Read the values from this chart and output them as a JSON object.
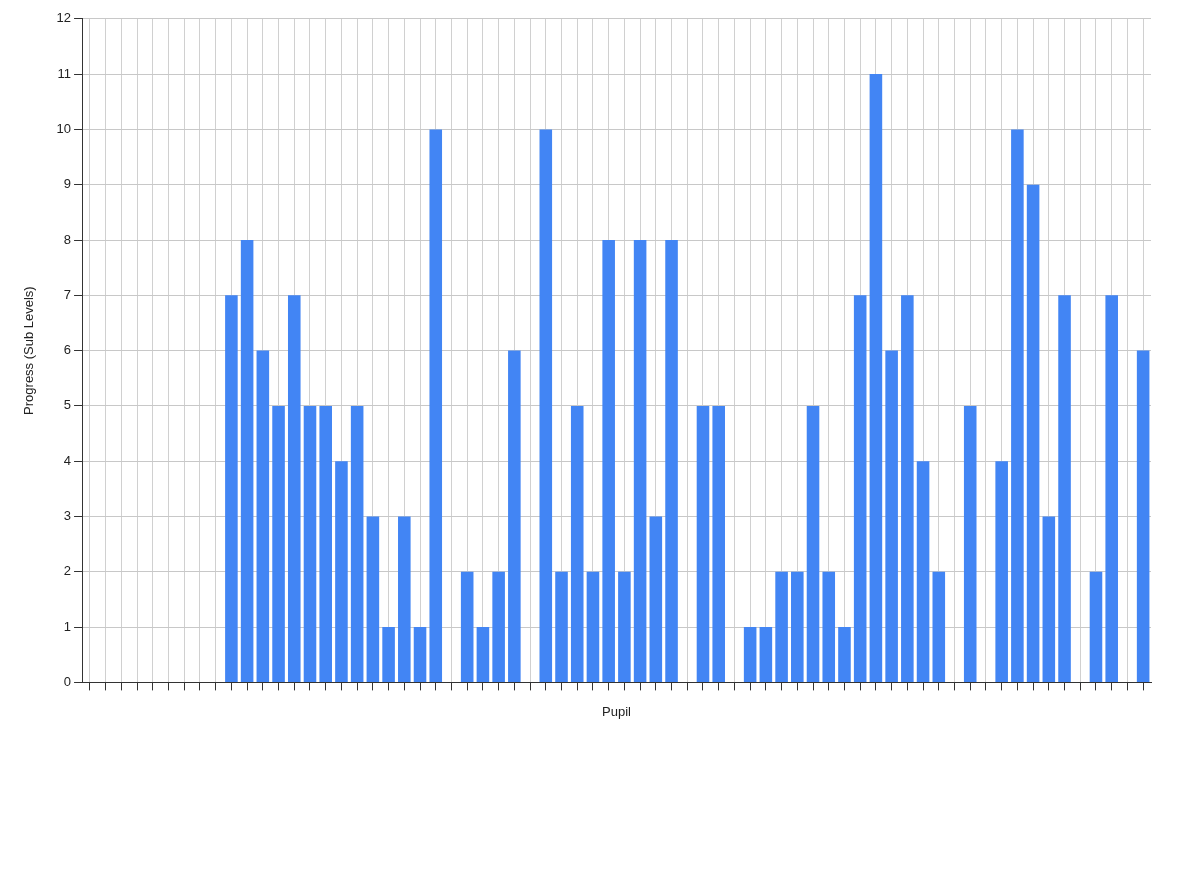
{
  "chart_data": {
    "type": "bar",
    "xlabel": "Pupil",
    "ylabel": "Progress (Sub Levels)",
    "categories": [
      null,
      null,
      null,
      null,
      null,
      null,
      null,
      null,
      null,
      null,
      null,
      null,
      null,
      null,
      null,
      null,
      null,
      null,
      null,
      null,
      null,
      null,
      null,
      null,
      null,
      null,
      null,
      null,
      null,
      null,
      null,
      null,
      null,
      null,
      null,
      null,
      null,
      null,
      null,
      null,
      null,
      null,
      null,
      null,
      null,
      null,
      null,
      null,
      null,
      null,
      null,
      null,
      null,
      null,
      null,
      null,
      null,
      null,
      null,
      null,
      null,
      null,
      null,
      null,
      null,
      null,
      null,
      null
    ],
    "values": [
      0,
      0,
      0,
      0,
      0,
      0,
      0,
      0,
      0,
      7,
      8,
      6,
      5,
      7,
      5,
      5,
      4,
      5,
      3,
      1,
      3,
      1,
      10,
      0,
      2,
      1,
      2,
      6,
      0,
      10,
      2,
      5,
      2,
      8,
      2,
      8,
      3,
      8,
      0,
      5,
      5,
      0,
      1,
      1,
      2,
      2,
      5,
      2,
      1,
      7,
      11,
      6,
      7,
      4,
      2,
      0,
      5,
      0,
      4,
      10,
      9,
      3,
      7,
      0,
      2,
      7,
      0,
      6
    ],
    "color": "#4285f4",
    "ylim": [
      0,
      12
    ],
    "yticks": [
      0,
      1,
      2,
      3,
      4,
      5,
      6,
      7,
      8,
      9,
      10,
      11,
      12
    ],
    "grid": true,
    "legend": false
  }
}
